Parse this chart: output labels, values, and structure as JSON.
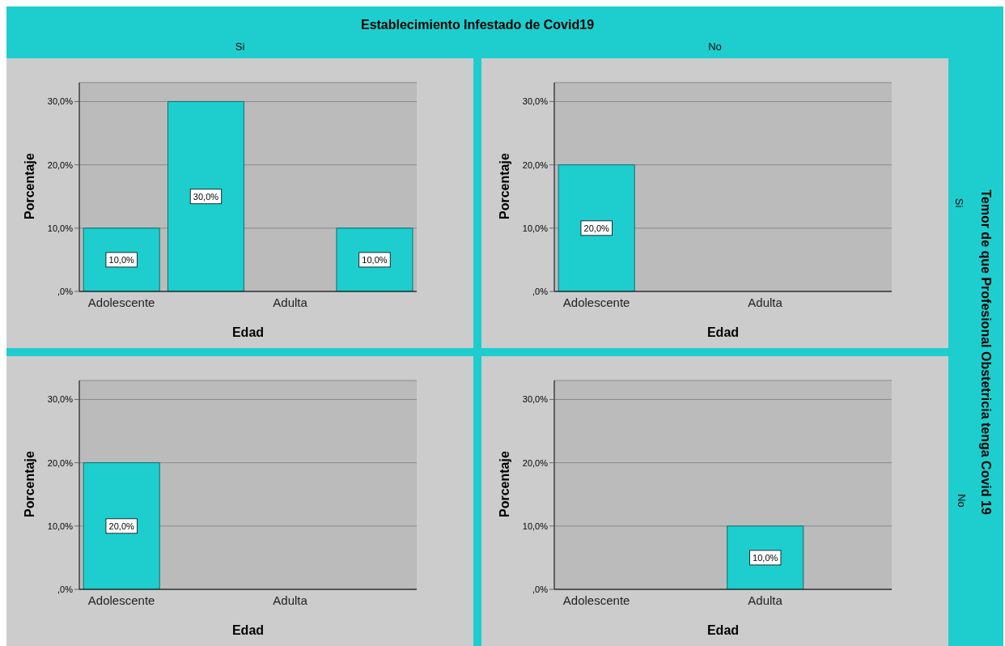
{
  "chart_data": [
    {
      "type": "bar",
      "title": "Establecimiento Infestado de Covid19",
      "subtitle": "Si",
      "xlabel": "Edad",
      "ylabel": "Porcentaje",
      "categories": [
        "Adolescente",
        null,
        "Adulta",
        null
      ],
      "values": [
        10,
        30,
        null,
        10
      ],
      "value_labels": [
        "10,0%",
        "30,0%",
        null,
        "10,0%"
      ],
      "color": "#1ecece",
      "ylim": [
        0,
        33
      ],
      "yticks": [
        {
          "value": 0,
          "label": ",0%"
        },
        {
          "value": 10,
          "label": "10,0%"
        },
        {
          "value": 20,
          "label": "20,0%"
        },
        {
          "value": 30,
          "label": "30,0%"
        }
      ],
      "grid": "y"
    },
    {
      "type": "bar",
      "subtitle": "No",
      "y2label": "Temor de que Profesional Obstetricia tenga Covid 19",
      "annotations": [
        "Si"
      ],
      "xlabel": "Edad",
      "ylabel": "Porcentaje",
      "categories": [
        "Adolescente",
        null,
        "Adulta",
        null
      ],
      "values": [
        20,
        null,
        null,
        null
      ],
      "value_labels": [
        "20,0%",
        null,
        null,
        null
      ],
      "color": "#1ecece",
      "ylim": [
        0,
        33
      ],
      "yticks": [
        {
          "value": 0,
          "label": ",0%"
        },
        {
          "value": 10,
          "label": "10,0%"
        },
        {
          "value": 20,
          "label": "20,0%"
        },
        {
          "value": 30,
          "label": "30,0%"
        }
      ],
      "grid": "y"
    },
    {
      "type": "bar",
      "xlabel": "Edad",
      "ylabel": "Porcentaje",
      "categories": [
        "Adolescente",
        null,
        "Adulta",
        null
      ],
      "values": [
        20,
        null,
        null,
        null
      ],
      "value_labels": [
        "20,0%",
        null,
        null,
        null
      ],
      "color": "#1ecece",
      "ylim": [
        0,
        33
      ],
      "yticks": [
        {
          "value": 0,
          "label": ",0%"
        },
        {
          "value": 10,
          "label": "10,0%"
        },
        {
          "value": 20,
          "label": "20,0%"
        },
        {
          "value": 30,
          "label": "30,0%"
        }
      ],
      "grid": "y"
    },
    {
      "type": "bar",
      "annotations": [
        "No"
      ],
      "xlabel": "Edad",
      "ylabel": "Porcentaje",
      "categories": [
        "Adolescente",
        null,
        "Adulta",
        null
      ],
      "values": [
        null,
        null,
        10,
        null
      ],
      "value_labels": [
        null,
        null,
        "10,0%",
        null
      ],
      "color": "#1ecece",
      "ylim": [
        0,
        33
      ],
      "yticks": [
        {
          "value": 0,
          "label": ",0%"
        },
        {
          "value": 10,
          "label": "10,0%"
        },
        {
          "value": 20,
          "label": "20,0%"
        },
        {
          "value": 30,
          "label": "30,0%"
        }
      ],
      "grid": "y"
    }
  ]
}
